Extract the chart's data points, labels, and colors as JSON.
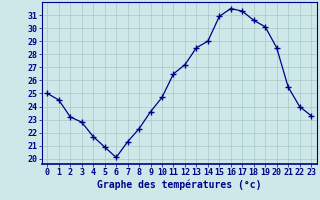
{
  "hours": [
    0,
    1,
    2,
    3,
    4,
    5,
    6,
    7,
    8,
    9,
    10,
    11,
    12,
    13,
    14,
    15,
    16,
    17,
    18,
    19,
    20,
    21,
    22,
    23
  ],
  "temperatures": [
    25.0,
    24.5,
    23.2,
    22.8,
    21.7,
    20.9,
    20.1,
    21.3,
    22.3,
    23.6,
    24.7,
    26.5,
    27.2,
    28.5,
    29.0,
    30.9,
    31.5,
    31.3,
    30.6,
    30.1,
    28.5,
    25.5,
    24.0,
    23.3
  ],
  "line_color": "#00008b",
  "marker": "+",
  "marker_size": 4,
  "marker_linewidth": 1.0,
  "line_width": 0.9,
  "bg_color": "#cce8e8",
  "grid_color": "#aac8c8",
  "axis_color": "#00008b",
  "xlabel": "Graphe des températures (°c)",
  "xlabel_fontsize": 7,
  "tick_fontsize": 6,
  "ylabel_ticks": [
    20,
    21,
    22,
    23,
    24,
    25,
    26,
    27,
    28,
    29,
    30,
    31
  ],
  "xlim": [
    -0.5,
    23.5
  ],
  "ylim": [
    19.6,
    32.0
  ]
}
